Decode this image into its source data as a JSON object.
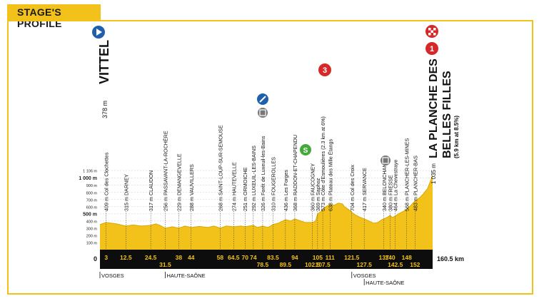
{
  "header": {
    "title": "STAGE'S PROFILE"
  },
  "colors": {
    "profile": "#f2c21b",
    "profile_dark": "#d9a800",
    "band": "#0d0d0d",
    "start_icon": "#1f5fae",
    "climb_icon": "#d62828",
    "sprint_icon": "#45a83a"
  },
  "y_axis": {
    "ticks": [
      {
        "label": "1 106 m",
        "value": 1106
      },
      {
        "label": "1 000 m",
        "value": 1000,
        "bold": true
      },
      {
        "label": "900 m",
        "value": 900
      },
      {
        "label": "800 m",
        "value": 800
      },
      {
        "label": "700 m",
        "value": 700
      },
      {
        "label": "600 m",
        "value": 600
      },
      {
        "label": "500 m",
        "value": 500,
        "bold": true
      },
      {
        "label": "400 m",
        "value": 400
      },
      {
        "label": "300 m",
        "value": 300
      },
      {
        "label": "200 m",
        "value": 200
      },
      {
        "label": "100 m",
        "value": 100
      }
    ]
  },
  "profile": {
    "total_km": 160.5,
    "points": [
      [
        0,
        350
      ],
      [
        3,
        380
      ],
      [
        8,
        360
      ],
      [
        12.5,
        330
      ],
      [
        16,
        345
      ],
      [
        20,
        330
      ],
      [
        24.5,
        340
      ],
      [
        27,
        360
      ],
      [
        29,
        340
      ],
      [
        31.5,
        300
      ],
      [
        35,
        320
      ],
      [
        38,
        300
      ],
      [
        41,
        330
      ],
      [
        44,
        310
      ],
      [
        48,
        325
      ],
      [
        52,
        310
      ],
      [
        55,
        330
      ],
      [
        58,
        300
      ],
      [
        61,
        330
      ],
      [
        64.5,
        320
      ],
      [
        68,
        330
      ],
      [
        70,
        320
      ],
      [
        74,
        340
      ],
      [
        76,
        310
      ],
      [
        78.5,
        330
      ],
      [
        81,
        310
      ],
      [
        83.5,
        350
      ],
      [
        86,
        370
      ],
      [
        89.5,
        420
      ],
      [
        92,
        400
      ],
      [
        94,
        430
      ],
      [
        97,
        400
      ],
      [
        99,
        380
      ],
      [
        102.5,
        380
      ],
      [
        104,
        400
      ],
      [
        105,
        500
      ],
      [
        107,
        540
      ],
      [
        107.5,
        560
      ],
      [
        109,
        600
      ],
      [
        111,
        630
      ],
      [
        113,
        620
      ],
      [
        115,
        650
      ],
      [
        117,
        640
      ],
      [
        118,
        600
      ],
      [
        120,
        560
      ],
      [
        121.5,
        520
      ],
      [
        123,
        490
      ],
      [
        125,
        460
      ],
      [
        127.5,
        430
      ],
      [
        130,
        400
      ],
      [
        132,
        370
      ],
      [
        134,
        380
      ],
      [
        136,
        420
      ],
      [
        137,
        430
      ],
      [
        139,
        460
      ],
      [
        140,
        480
      ],
      [
        141,
        450
      ],
      [
        142.5,
        470
      ],
      [
        144,
        500
      ],
      [
        146,
        530
      ],
      [
        148,
        560
      ],
      [
        150,
        620
      ],
      [
        152,
        680
      ],
      [
        154,
        720
      ],
      [
        156,
        780
      ],
      [
        158,
        850
      ],
      [
        160.5,
        1035
      ]
    ]
  },
  "km_markers": {
    "top": [
      "3",
      "12.5",
      "24.5",
      "38",
      "44",
      "58",
      "64.5",
      "70",
      "74",
      "83.5",
      "94",
      "105",
      "111",
      "121.5",
      "137",
      "140",
      "148"
    ],
    "bottom": [
      "31.5",
      "78.5",
      "89.5",
      "102.5",
      "107.5",
      "127.5",
      "142.5",
      "152"
    ],
    "top_km": [
      3,
      12.5,
      24.5,
      38,
      44,
      58,
      64.5,
      70,
      74,
      83.5,
      94,
      105,
      111,
      121.5,
      137,
      140,
      148
    ],
    "bottom_km": [
      31.5,
      78.5,
      89.5,
      102.5,
      107.5,
      127.5,
      142.5,
      152
    ],
    "start": "0",
    "end": "160.5 km"
  },
  "start": {
    "alt": "378 m",
    "name": "VITTEL"
  },
  "finish": {
    "alt": "1 035 m",
    "name_line1": "LA PLANCHE DES",
    "name_line2": "BELLES FILLES",
    "detail": "(5.9 km at 8.5%)",
    "badge": "1"
  },
  "places": [
    {
      "text": "409 m Col des Clochettes",
      "km": 3
    },
    {
      "text": "315 m DARNEY",
      "km": 12.5
    },
    {
      "text": "317 m CLAUDON",
      "km": 24.5
    },
    {
      "text": "256 m PASSAVANT-LA-ROCHÈRE",
      "km": 31.5
    },
    {
      "text": "229 m DEMANGEVELLE",
      "km": 38
    },
    {
      "text": "288 m VAUVILLERS",
      "km": 44
    },
    {
      "text": "268 m SAINT-LOUP-SUR-SEMOUSE",
      "km": 58
    },
    {
      "text": "274 m HAUTEVELLE",
      "km": 64.5
    },
    {
      "text": "251 m ORMOICHE",
      "km": 70
    },
    {
      "text": "292 m LUXEUIL-LES-BAINS",
      "km": 74
    },
    {
      "text": "326 m Forêt de Luxeuil-les-Bains",
      "km": 78.5
    },
    {
      "text": "310 m FOUGEROLLES",
      "km": 83.5
    },
    {
      "text": "436 m Les Forges",
      "km": 89.5
    },
    {
      "text": "368 m RADDON-ET-CHAPENDU",
      "km": 94
    },
    {
      "text": "360 m FAUCOGNEY",
      "km": 102.5
    },
    {
      "text": "369 m Saphoz",
      "km": 105
    },
    {
      "text": "573 m Côte d'Esmoulières (2.3 km at 6%)",
      "km": 107.5
    },
    {
      "text": "638 m Plateau des Mille Étangs",
      "km": 111
    },
    {
      "text": "704 m Col des Croix",
      "km": 121.5
    },
    {
      "text": "417 m SERVANCE",
      "km": 127.5
    },
    {
      "text": "340 m BELONCHAMP",
      "km": 137
    },
    {
      "text": "380 m FRESSE",
      "km": 140
    },
    {
      "text": "464 m La Chevestraye",
      "km": 142.5
    },
    {
      "text": "568 m PLANCHER-LES-MINES",
      "km": 148
    },
    {
      "text": "483 m PLANCHER-BAS",
      "km": 152
    }
  ],
  "climbs": {
    "esmoulieres_badge": "3"
  },
  "regions": [
    "VOSGES",
    "HAUTE-SAÔNE",
    "VOSGES",
    "HAUTE-SAÔNE"
  ],
  "regions_km": [
    0,
    31.5,
    121.5,
    127.5
  ]
}
